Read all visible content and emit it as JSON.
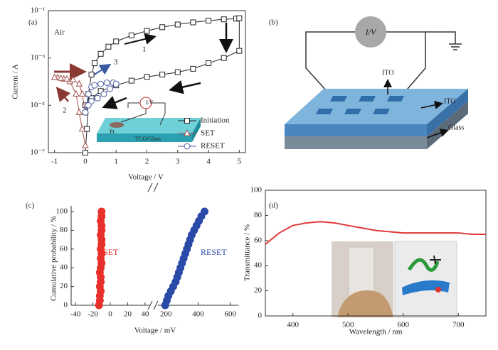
{
  "chart_data": [
    {
      "type": "line",
      "panel_label": "(a)",
      "x_label": "Voltage / V",
      "y_label": "Current / A",
      "log_y": true,
      "xlim": [
        -1.2,
        5.2
      ],
      "ylim": [
        1e-07,
        0.1
      ],
      "xticks": [
        -1,
        0,
        1,
        2,
        3,
        4,
        5
      ],
      "yticks": [
        {
          "value": 0.1,
          "label": "10⁻¹"
        },
        {
          "value": 0.001,
          "label": "10⁻³"
        },
        {
          "value": 1e-05,
          "label": "10⁻⁵"
        },
        {
          "value": 1e-07,
          "label": "10⁻⁷"
        }
      ],
      "annotations": [
        "Air",
        "1",
        "2",
        "3",
        "I/V",
        "Pt",
        "TCO/Glass"
      ],
      "legend": "lower-right",
      "series": [
        {
          "name": "Initiation",
          "color": "#222222",
          "marker": "square",
          "x": [
            0,
            0.05,
            0.1,
            0.2,
            0.3,
            0.5,
            0.75,
            1,
            1.5,
            2,
            2.5,
            3,
            3.5,
            4,
            4.5,
            4.9,
            5,
            5,
            4.5,
            4,
            3.5,
            3,
            2.5,
            2,
            1.5,
            1,
            0.5,
            0.2,
            0
          ],
          "values": [
            1e-07,
            1e-06,
            3e-05,
            0.0002,
            0.0006,
            0.0015,
            0.003,
            0.005,
            0.009,
            0.014,
            0.02,
            0.026,
            0.032,
            0.038,
            0.043,
            0.046,
            0.048,
            0.002,
            0.001,
            0.0006,
            0.00035,
            0.00025,
            0.0002,
            0.00016,
            0.00011,
            7e-05,
            4e-05,
            2e-05,
            1e-05
          ]
        },
        {
          "name": "SET",
          "color": "#a0524a",
          "marker": "triangle",
          "x": [
            0,
            -0.1,
            -0.2,
            -0.3,
            -0.5,
            -0.7,
            -0.9,
            -1,
            -0.8,
            -0.6,
            -0.4,
            -0.2,
            -0.1,
            0
          ],
          "values": [
            2e-07,
            1e-06,
            5e-06,
            3e-05,
            0.0001,
            0.00013,
            0.00015,
            0.00015,
            0.00014,
            0.00013,
            0.00012,
            8e-05,
            3e-05,
            5e-06
          ]
        },
        {
          "name": "RESET",
          "color": "#5060a8",
          "marker": "circle",
          "x": [
            0,
            0.1,
            0.2,
            0.3,
            0.5,
            0.7,
            0.9,
            1,
            0.8,
            0.6,
            0.4,
            0.2,
            0.1,
            0
          ],
          "values": [
            5e-06,
            3e-05,
            6e-05,
            7e-05,
            8e-05,
            9e-05,
            9e-05,
            8e-05,
            5e-05,
            3e-05,
            2e-05,
            1.5e-05,
            1e-05,
            5e-06
          ]
        }
      ]
    },
    {
      "type": "scatter",
      "panel_label": "(c)",
      "x_label": "Voltage / mV",
      "y_label": "Cumulative probability / %",
      "xlim": [
        -45,
        45
      ],
      "xticks": [
        -40,
        -20,
        0,
        20,
        40
      ],
      "x2lim": [
        150,
        650
      ],
      "x2ticks": [
        200,
        400,
        600
      ],
      "ylim": [
        0,
        100
      ],
      "yticks": [
        0,
        20,
        40,
        60,
        80,
        100
      ],
      "legend": "inline",
      "series": [
        {
          "name": "SET",
          "color": "#e8302a",
          "marker": "dot",
          "x": [
            -13,
            -12,
            -12,
            -11,
            -12,
            -11,
            -11,
            -12,
            -11,
            -10,
            -11,
            -10,
            -11,
            -10,
            -10,
            -11,
            -10,
            -10,
            -11,
            -10,
            -10
          ],
          "values": [
            0,
            5,
            10,
            15,
            20,
            25,
            30,
            35,
            40,
            45,
            50,
            55,
            60,
            65,
            70,
            75,
            80,
            85,
            90,
            95,
            100
          ]
        },
        {
          "name": "RESET",
          "color": "#2a4aa8",
          "marker": "dot",
          "axis": "x2",
          "x": [
            195,
            205,
            215,
            230,
            245,
            260,
            270,
            280,
            290,
            300,
            310,
            320,
            330,
            340,
            350,
            360,
            375,
            390,
            405,
            420,
            440
          ],
          "values": [
            0,
            5,
            10,
            15,
            20,
            25,
            30,
            35,
            40,
            45,
            50,
            55,
            60,
            65,
            70,
            75,
            80,
            85,
            90,
            95,
            100
          ]
        }
      ]
    },
    {
      "type": "line",
      "panel_label": "(d)",
      "x_label": "Wavelength / nm",
      "y_label": "Transmittance / %",
      "xlim": [
        350,
        750
      ],
      "xticks": [
        400,
        500,
        600,
        700
      ],
      "ylim": [
        0,
        100
      ],
      "yticks": [
        0,
        20,
        40,
        60,
        80,
        100
      ],
      "series": [
        {
          "color": "#e03a3a",
          "x": [
            350,
            375,
            400,
            425,
            450,
            475,
            500,
            525,
            550,
            575,
            600,
            625,
            650,
            675,
            700,
            725,
            750
          ],
          "values": [
            57,
            66,
            72,
            74,
            75,
            74,
            72,
            70,
            68,
            67,
            66,
            66,
            66,
            66,
            66,
            65,
            65
          ]
        }
      ]
    }
  ],
  "diagram": {
    "panel_label": "(b)",
    "meter": "I/V",
    "labels": [
      "ITO",
      "ITO",
      "Glass"
    ]
  }
}
